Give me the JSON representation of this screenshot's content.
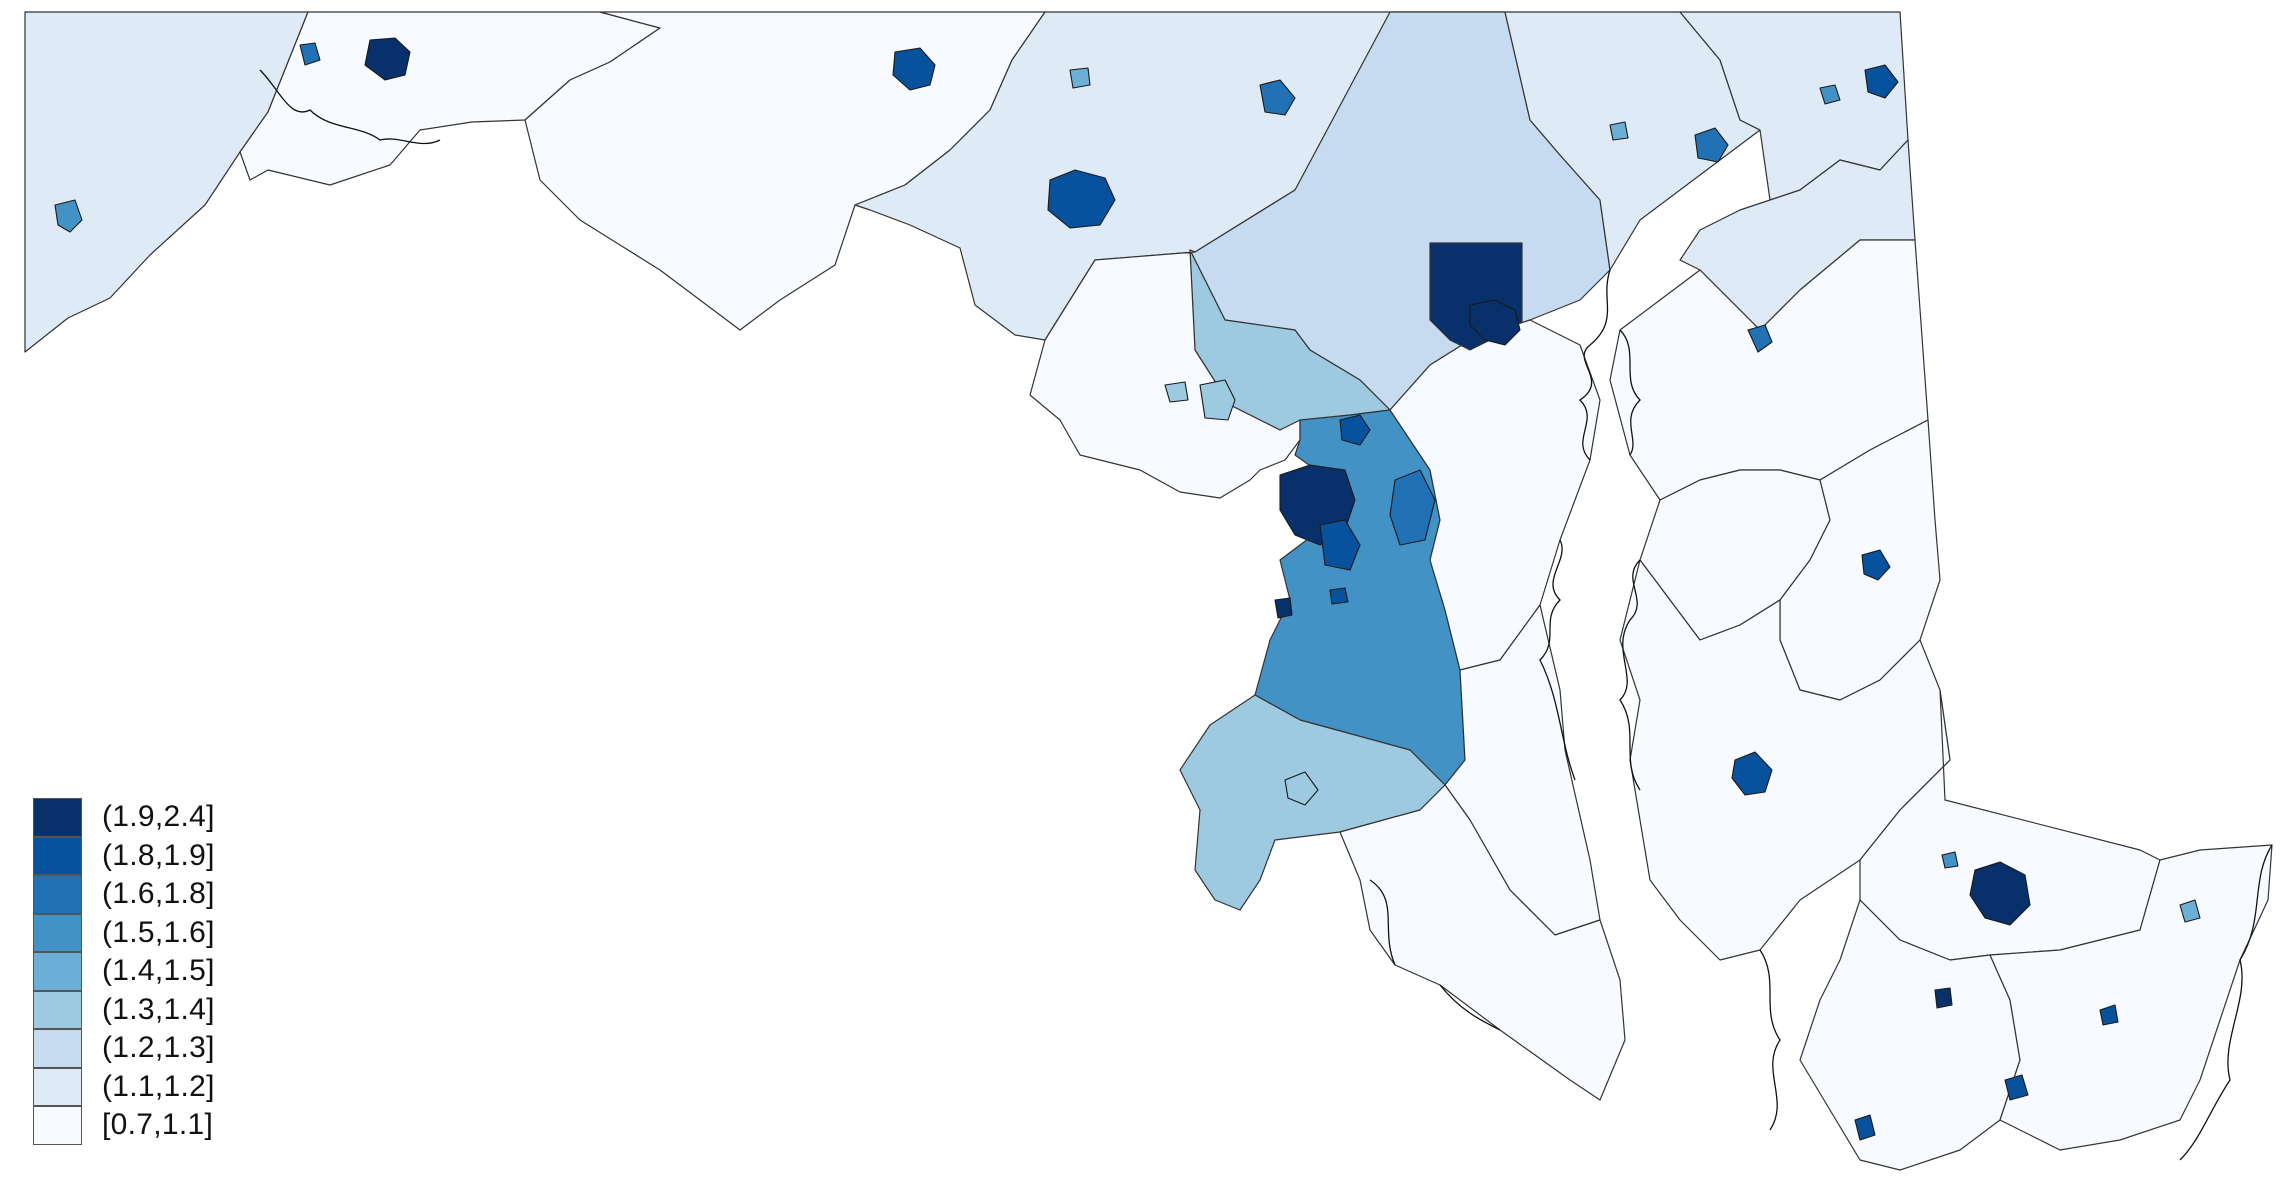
{
  "map": {
    "palette": [
      "#08306b",
      "#08519c",
      "#2171b5",
      "#4292c6",
      "#6baed6",
      "#9ecae1",
      "#c6dbef",
      "#deebf7",
      "#f7fbff"
    ],
    "outline_color": "#333333",
    "background": "#ffffff",
    "regions": [
      {
        "id": "garrett",
        "class": 7
      },
      {
        "id": "allegany",
        "class": 8
      },
      {
        "id": "washington",
        "class": 8
      },
      {
        "id": "frederick",
        "class": 7
      },
      {
        "id": "carroll",
        "class": 7
      },
      {
        "id": "baltimore-county",
        "class": 6
      },
      {
        "id": "harford",
        "class": 7
      },
      {
        "id": "cecil",
        "class": 7
      },
      {
        "id": "baltimore-city",
        "class": 0
      },
      {
        "id": "howard",
        "class": 5
      },
      {
        "id": "montgomery",
        "class": 8
      },
      {
        "id": "prince-georges",
        "class": 3
      },
      {
        "id": "anne-arundel",
        "class": 8
      },
      {
        "id": "charles",
        "class": 5
      },
      {
        "id": "calvert",
        "class": 8
      },
      {
        "id": "st-marys",
        "class": 8
      },
      {
        "id": "kent",
        "class": 7
      },
      {
        "id": "queen-annes",
        "class": 8
      },
      {
        "id": "talbot",
        "class": 8
      },
      {
        "id": "caroline",
        "class": 8
      },
      {
        "id": "dorchester",
        "class": 8
      },
      {
        "id": "wicomico",
        "class": 8
      },
      {
        "id": "somerset",
        "class": 8
      },
      {
        "id": "worcester",
        "class": 8
      }
    ]
  },
  "legend": {
    "items": [
      {
        "label": "(1.9,2.4]",
        "color": "#08306b"
      },
      {
        "label": "(1.8,1.9]",
        "color": "#08519c"
      },
      {
        "label": "(1.6,1.8]",
        "color": "#2171b5"
      },
      {
        "label": "(1.5,1.6]",
        "color": "#4292c6"
      },
      {
        "label": "(1.4,1.5]",
        "color": "#6baed6"
      },
      {
        "label": "(1.3,1.4]",
        "color": "#9ecae1"
      },
      {
        "label": "(1.2,1.3]",
        "color": "#c6dbef"
      },
      {
        "label": "(1.1,1.2]",
        "color": "#deebf7"
      },
      {
        "label": "[0.7,1.1]",
        "color": "#f7fbff"
      }
    ]
  }
}
